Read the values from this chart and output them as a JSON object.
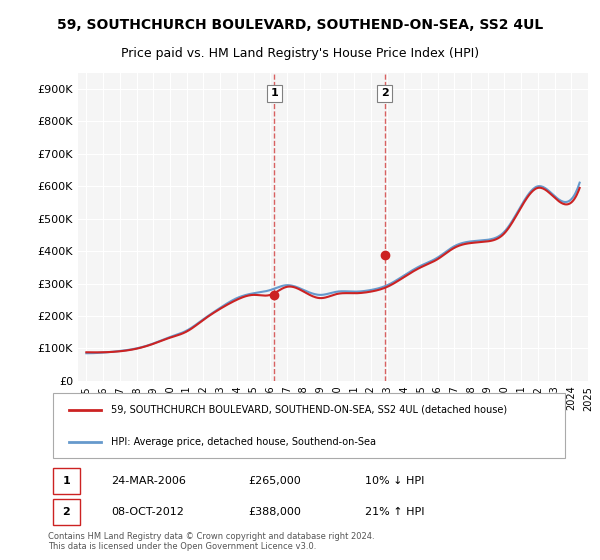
{
  "title_line1": "59, SOUTHCHURCH BOULEVARD, SOUTHEND-ON-SEA, SS2 4UL",
  "title_line2": "Price paid vs. HM Land Registry's House Price Index (HPI)",
  "ylabel": "",
  "xlabel": "",
  "ylim": [
    0,
    950000
  ],
  "yticks": [
    0,
    100000,
    200000,
    300000,
    400000,
    500000,
    600000,
    700000,
    800000,
    900000
  ],
  "ytick_labels": [
    "£0",
    "£100K",
    "£200K",
    "£300K",
    "£400K",
    "£500K",
    "£600K",
    "£700K",
    "£800K",
    "£900K"
  ],
  "sale1_date": "2006-03-24",
  "sale1_price": 265000,
  "sale1_label": "1",
  "sale1_pct": "10% ↓ HPI",
  "sale2_date": "2012-10-08",
  "sale2_price": 388000,
  "sale2_label": "2",
  "sale2_pct": "21% ↑ HPI",
  "hpi_color": "#6699cc",
  "price_color": "#cc2222",
  "background_color": "#ffffff",
  "plot_bg_color": "#f5f5f5",
  "shade_color": "#ddeeff",
  "legend_label_price": "59, SOUTHCHURCH BOULEVARD, SOUTHEND-ON-SEA, SS2 4UL (detached house)",
  "legend_label_hpi": "HPI: Average price, detached house, Southend-on-Sea",
  "footer": "Contains HM Land Registry data © Crown copyright and database right 2024.\nThis data is licensed under the Open Government Licence v3.0.",
  "hpi_data": {
    "years": [
      1995,
      1996,
      1997,
      1998,
      1999,
      2000,
      2001,
      2002,
      2003,
      2004,
      2005,
      2006,
      2007,
      2008,
      2009,
      2010,
      2011,
      2012,
      2013,
      2014,
      2015,
      2016,
      2017,
      2018,
      2019,
      2020,
      2021,
      2022,
      2023,
      2024
    ],
    "hpi_values": [
      85000,
      87000,
      92000,
      100000,
      115000,
      135000,
      155000,
      190000,
      225000,
      255000,
      270000,
      280000,
      295000,
      280000,
      265000,
      275000,
      275000,
      280000,
      295000,
      325000,
      355000,
      380000,
      415000,
      430000,
      435000,
      460000,
      540000,
      600000,
      570000,
      560000
    ],
    "price_values": [
      88000,
      88000,
      91000,
      99000,
      114000,
      133000,
      152000,
      188000,
      222000,
      250000,
      265000,
      265000,
      290000,
      275000,
      255000,
      268000,
      270000,
      275000,
      290000,
      320000,
      350000,
      375000,
      410000,
      425000,
      430000,
      455000,
      535000,
      595000,
      565000,
      550000
    ]
  }
}
